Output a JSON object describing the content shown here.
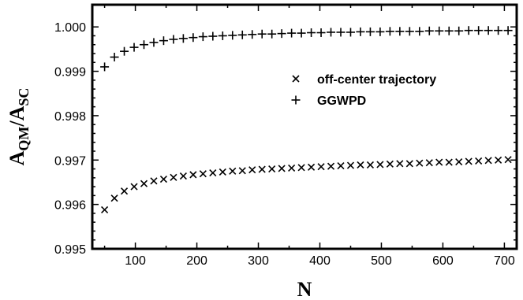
{
  "chart_data": {
    "type": "scatter",
    "xlabel": "N",
    "ylabel_main": "A",
    "ylabel_sub1": "QM",
    "ylabel_mid": "/A",
    "ylabel_sub2": "SC",
    "xlim": [
      30,
      720
    ],
    "ylim": [
      0.995,
      1.0005
    ],
    "x_ticks": [
      100,
      200,
      300,
      400,
      500,
      600,
      700
    ],
    "y_ticks": [
      0.995,
      0.996,
      0.997,
      0.998,
      0.999,
      1.0
    ],
    "y_tick_labels": [
      "0.995",
      "0.996",
      "0.997",
      "0.998",
      "0.999",
      "1.000"
    ],
    "grid": false,
    "legend_position": "top-right",
    "x": [
      50,
      66,
      82,
      98,
      114,
      130,
      146,
      162,
      178,
      194,
      210,
      226,
      242,
      258,
      274,
      290,
      306,
      322,
      338,
      354,
      370,
      386,
      402,
      418,
      434,
      450,
      466,
      482,
      498,
      514,
      530,
      546,
      562,
      578,
      594,
      610,
      626,
      642,
      658,
      674,
      690,
      706
    ],
    "series": [
      {
        "name": "off-center trajectory",
        "marker": "x",
        "values": [
          0.99588,
          0.99614,
          0.9963,
          0.9964,
          0.99647,
          0.99653,
          0.99657,
          0.99661,
          0.99664,
          0.99667,
          0.99669,
          0.99671,
          0.99673,
          0.99675,
          0.99676,
          0.99678,
          0.99679,
          0.9968,
          0.99681,
          0.99682,
          0.99683,
          0.99684,
          0.99685,
          0.99686,
          0.99687,
          0.99688,
          0.99689,
          0.99689,
          0.9969,
          0.99691,
          0.99692,
          0.99692,
          0.99693,
          0.99694,
          0.99695,
          0.99695,
          0.99696,
          0.99697,
          0.99698,
          0.99699,
          0.997,
          0.99701
        ]
      },
      {
        "name": "GGWPD",
        "marker": "+",
        "values": [
          0.9991,
          0.99932,
          0.99945,
          0.99954,
          0.9996,
          0.99965,
          0.99969,
          0.99972,
          0.99974,
          0.99976,
          0.99978,
          0.99979,
          0.9998,
          0.99981,
          0.99982,
          0.99983,
          0.99984,
          0.99984,
          0.99985,
          0.99986,
          0.99986,
          0.99987,
          0.99987,
          0.99988,
          0.99988,
          0.99988,
          0.99989,
          0.99989,
          0.99989,
          0.9999,
          0.9999,
          0.9999,
          0.9999,
          0.99991,
          0.99991,
          0.99991,
          0.99991,
          0.99992,
          0.99992,
          0.99992,
          0.99992,
          0.99992
        ]
      }
    ]
  }
}
